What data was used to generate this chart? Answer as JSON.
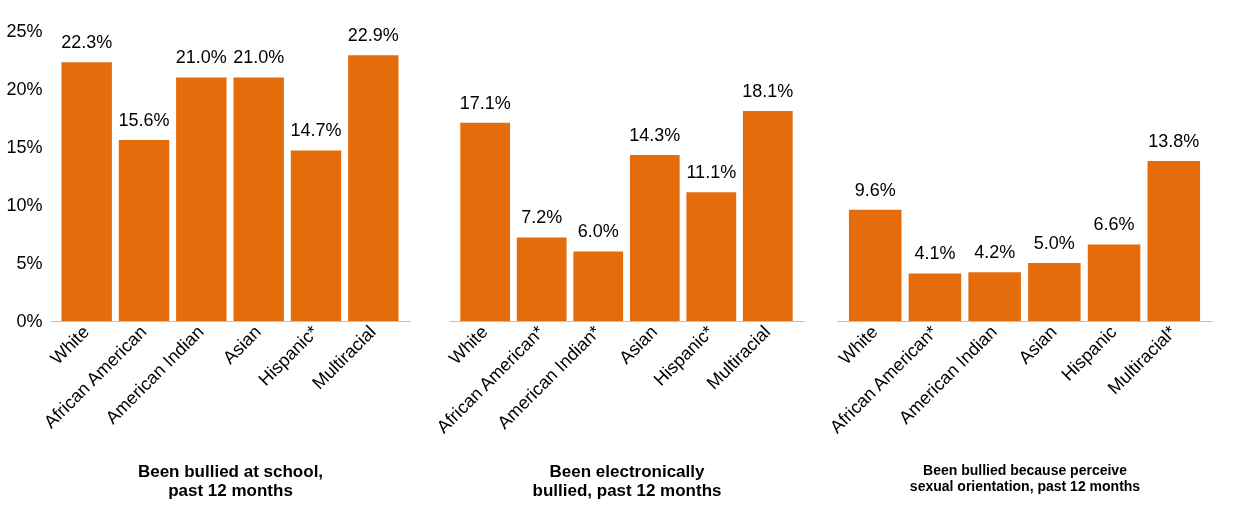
{
  "chart_data": [
    {
      "type": "bar",
      "categories": [
        "White",
        "African American",
        "American Indian",
        "Asian",
        "Hispanic*",
        "Multiracial"
      ],
      "values": [
        22.3,
        15.6,
        21.0,
        21.0,
        14.7,
        22.9
      ],
      "value_labels": [
        "22.3%",
        "15.6%",
        "21.0%",
        "21.0%",
        "14.7%",
        "22.9%"
      ],
      "color": "#e46c0a",
      "xlabel": "Been bullied at school,\npast 12 months",
      "ylim": [
        0,
        25
      ],
      "yticks": [
        {
          "value": 0,
          "label": "0%"
        },
        {
          "value": 5,
          "label": "5%"
        },
        {
          "value": 10,
          "label": "10%"
        },
        {
          "value": 15,
          "label": "15%"
        },
        {
          "value": 20,
          "label": "20%"
        },
        {
          "value": 25,
          "label": "25%"
        }
      ],
      "grid": false
    },
    {
      "type": "bar",
      "categories": [
        "White",
        "African American*",
        "American Indian*",
        "Asian",
        "Hispanic*",
        "Multiracial"
      ],
      "values": [
        17.1,
        7.2,
        6.0,
        14.3,
        11.1,
        18.1
      ],
      "value_labels": [
        "17.1%",
        "7.2%",
        "6.0%",
        "14.3%",
        "11.1%",
        "18.1%"
      ],
      "color": "#e46c0a",
      "xlabel": "Been electronically\nbullied, past 12 months",
      "ylim": [
        0,
        25
      ],
      "tick_labels": "x",
      "grid": false
    },
    {
      "type": "bar",
      "categories": [
        "White",
        "African American*",
        "American Indian",
        "Asian",
        "Hispanic",
        "Multiracial*"
      ],
      "values": [
        9.6,
        4.1,
        4.2,
        5.0,
        6.6,
        13.8
      ],
      "value_labels": [
        "9.6%",
        "4.1%",
        "4.2%",
        "5.0%",
        "6.6%",
        "13.8%"
      ],
      "color": "#e46c0a",
      "xlabel": "Been bullied because perceive\nsexual orientation, past 12 months",
      "ylim": [
        0,
        25
      ],
      "tick_labels": "x",
      "grid": false
    }
  ]
}
